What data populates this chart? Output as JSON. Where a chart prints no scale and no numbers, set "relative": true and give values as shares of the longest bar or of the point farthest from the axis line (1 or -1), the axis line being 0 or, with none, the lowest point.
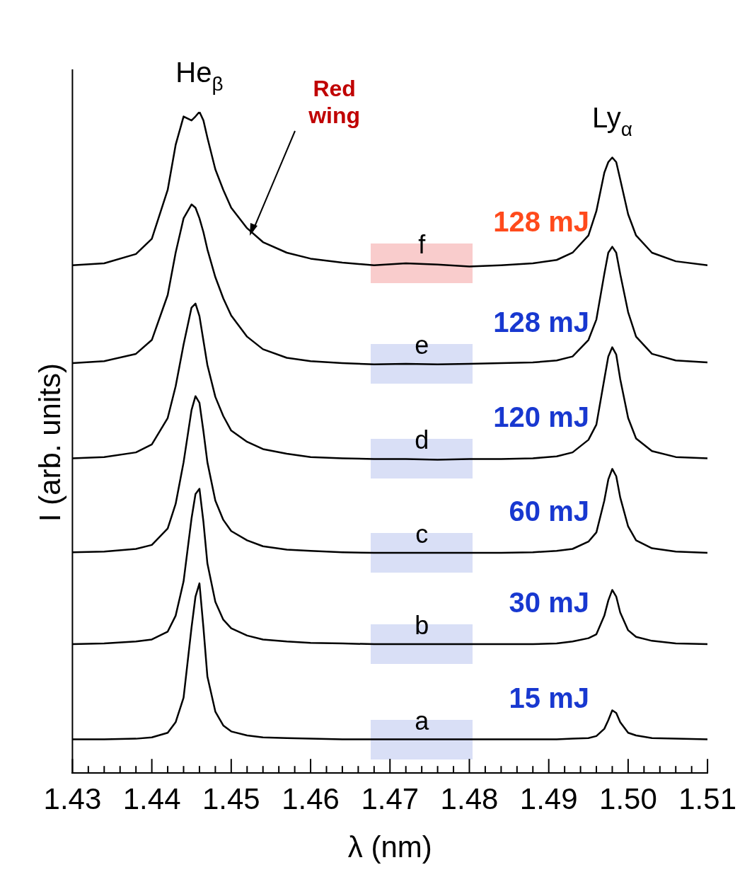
{
  "chart_data": {
    "type": "line",
    "relative": true,
    "xlabel": "λ (nm)",
    "ylabel": "I (arb. units)",
    "x": [
      1.43,
      1.434,
      1.438,
      1.44,
      1.442,
      1.443,
      1.444,
      1.445,
      1.4455,
      1.446,
      1.4465,
      1.447,
      1.448,
      1.449,
      1.45,
      1.452,
      1.454,
      1.457,
      1.46,
      1.464,
      1.468,
      1.472,
      1.476,
      1.48,
      1.484,
      1.488,
      1.491,
      1.493,
      1.495,
      1.496,
      1.497,
      1.4975,
      1.498,
      1.4985,
      1.499,
      1.5,
      1.501,
      1.503,
      1.506,
      1.51
    ],
    "xlim": [
      1.43,
      1.51
    ],
    "xticks": [
      1.43,
      {
        "value": 1.432,
        "label": null
      },
      {
        "value": 1.434,
        "label": null
      },
      {
        "value": 1.436,
        "label": null
      },
      {
        "value": 1.438,
        "label": null
      },
      1.44,
      {
        "value": 1.442,
        "label": null
      },
      {
        "value": 1.444,
        "label": null
      },
      {
        "value": 1.446,
        "label": null
      },
      {
        "value": 1.448,
        "label": null
      },
      1.45,
      {
        "value": 1.452,
        "label": null
      },
      {
        "value": 1.454,
        "label": null
      },
      {
        "value": 1.456,
        "label": null
      },
      {
        "value": 1.458,
        "label": null
      },
      1.46,
      {
        "value": 1.462,
        "label": null
      },
      {
        "value": 1.464,
        "label": null
      },
      {
        "value": 1.466,
        "label": null
      },
      {
        "value": 1.468,
        "label": null
      },
      1.47,
      {
        "value": 1.472,
        "label": null
      },
      {
        "value": 1.474,
        "label": null
      },
      {
        "value": 1.476,
        "label": null
      },
      {
        "value": 1.478,
        "label": null
      },
      1.48,
      {
        "value": 1.482,
        "label": null
      },
      {
        "value": 1.484,
        "label": null
      },
      {
        "value": 1.486,
        "label": null
      },
      {
        "value": 1.488,
        "label": null
      },
      1.49,
      {
        "value": 1.492,
        "label": null
      },
      {
        "value": 1.494,
        "label": null
      },
      {
        "value": 1.496,
        "label": null
      },
      {
        "value": 1.498,
        "label": null
      },
      {
        "value": 1.5,
        "label": "1.50"
      },
      {
        "value": 1.502,
        "label": null
      },
      {
        "value": 1.504,
        "label": null
      },
      {
        "value": 1.506,
        "label": null
      },
      {
        "value": 1.508,
        "label": null
      },
      1.51
    ],
    "series": [
      {
        "name": "a",
        "color": "#000000",
        "values": [
          0.051,
          0.051,
          0.052,
          0.054,
          0.061,
          0.077,
          0.114,
          0.22,
          0.267,
          0.287,
          0.22,
          0.146,
          0.093,
          0.072,
          0.063,
          0.057,
          0.054,
          0.053,
          0.052,
          0.051,
          0.051,
          0.051,
          0.051,
          0.051,
          0.051,
          0.051,
          0.051,
          0.052,
          0.053,
          0.056,
          0.067,
          0.08,
          0.095,
          0.091,
          0.077,
          0.061,
          0.057,
          0.053,
          0.052,
          0.051
        ]
      },
      {
        "name": "b",
        "color": "#000000",
        "values": [
          0.195,
          0.196,
          0.199,
          0.202,
          0.214,
          0.238,
          0.29,
          0.385,
          0.422,
          0.43,
          0.38,
          0.317,
          0.259,
          0.232,
          0.219,
          0.208,
          0.202,
          0.199,
          0.197,
          0.196,
          0.195,
          0.195,
          0.195,
          0.195,
          0.195,
          0.195,
          0.196,
          0.199,
          0.204,
          0.21,
          0.238,
          0.261,
          0.277,
          0.267,
          0.243,
          0.216,
          0.206,
          0.2,
          0.196,
          0.195
        ]
      },
      {
        "name": "c",
        "color": "#000000",
        "values": [
          0.334,
          0.335,
          0.339,
          0.345,
          0.37,
          0.407,
          0.47,
          0.549,
          0.57,
          0.56,
          0.517,
          0.47,
          0.412,
          0.383,
          0.366,
          0.352,
          0.343,
          0.338,
          0.336,
          0.334,
          0.333,
          0.333,
          0.333,
          0.333,
          0.333,
          0.334,
          0.336,
          0.339,
          0.35,
          0.364,
          0.412,
          0.444,
          0.46,
          0.449,
          0.417,
          0.373,
          0.352,
          0.34,
          0.335,
          0.333
        ]
      },
      {
        "name": "d",
        "color": "#000000",
        "values": [
          0.476,
          0.478,
          0.485,
          0.497,
          0.537,
          0.585,
          0.648,
          0.704,
          0.71,
          0.691,
          0.654,
          0.617,
          0.569,
          0.54,
          0.518,
          0.501,
          0.49,
          0.483,
          0.478,
          0.476,
          0.475,
          0.475,
          0.474,
          0.475,
          0.475,
          0.476,
          0.479,
          0.485,
          0.504,
          0.527,
          0.596,
          0.63,
          0.644,
          0.633,
          0.596,
          0.537,
          0.506,
          0.487,
          0.478,
          0.476
        ]
      },
      {
        "name": "e",
        "color": "#000000",
        "values": [
          0.62,
          0.623,
          0.634,
          0.655,
          0.723,
          0.787,
          0.839,
          0.86,
          0.855,
          0.839,
          0.818,
          0.792,
          0.75,
          0.718,
          0.692,
          0.66,
          0.641,
          0.628,
          0.623,
          0.62,
          0.618,
          0.619,
          0.618,
          0.619,
          0.62,
          0.621,
          0.624,
          0.63,
          0.655,
          0.686,
          0.755,
          0.787,
          0.796,
          0.787,
          0.755,
          0.697,
          0.66,
          0.634,
          0.624,
          0.621
        ]
      },
      {
        "name": "f",
        "color": "#000000",
        "values": [
          0.768,
          0.771,
          0.785,
          0.808,
          0.882,
          0.95,
          0.993,
          0.987,
          0.993,
          1,
          0.987,
          0.961,
          0.913,
          0.882,
          0.855,
          0.824,
          0.803,
          0.787,
          0.778,
          0.772,
          0.768,
          0.771,
          0.769,
          0.766,
          0.768,
          0.771,
          0.776,
          0.787,
          0.813,
          0.85,
          0.908,
          0.924,
          0.931,
          0.924,
          0.898,
          0.845,
          0.813,
          0.787,
          0.774,
          0.768
        ]
      }
    ],
    "annotations": [
      {
        "text": "He$_{β}$",
        "x": 1.446,
        "y": 1
      },
      {
        "text": "Ly$_{α}$",
        "x": 1.498,
        "y": 0.931
      },
      {
        "text": "Red wing",
        "x": 1.4523,
        "y": 0.815
      },
      "128 mJ",
      "128 mJ",
      "120 mJ",
      "60 mJ",
      "30 mJ",
      "15 mJ"
    ]
  }
}
